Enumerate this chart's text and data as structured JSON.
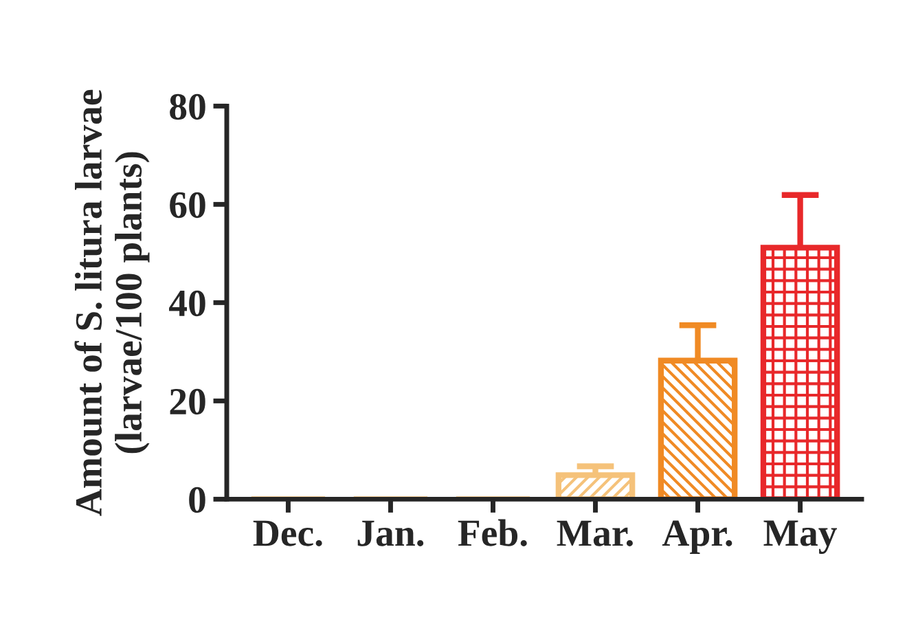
{
  "chart_data": {
    "type": "bar",
    "ylabel": "Amount of S. litura larvae\n(larvae/100 plants)",
    "categories": [
      "Dec.",
      "Jan.",
      "Feb.",
      "Mar.",
      "Apr.",
      "May"
    ],
    "values": [
      0,
      0,
      0,
      4.9,
      28.2,
      51.2
    ],
    "errors": [
      null,
      null,
      null,
      [
        4.9,
        6.7
      ],
      [
        28.2,
        35.4
      ],
      [
        51.2,
        61.9
      ]
    ],
    "colors": [
      "#f5c27a",
      "#f5c27a",
      "#f5c27a",
      "#f5c27a",
      "#f08a24",
      "#e8282a"
    ],
    "ylim": [
      0,
      80
    ],
    "yticks": [
      0,
      20,
      40,
      60,
      80
    ],
    "grid": false,
    "legend": false
  }
}
